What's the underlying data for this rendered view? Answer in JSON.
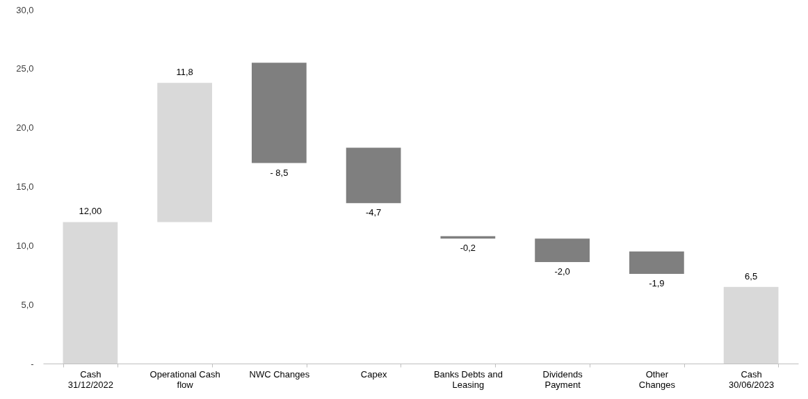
{
  "chart_data": {
    "type": "bar",
    "categories": [
      "Cash\n31/12/2022",
      "Operational Cash\nflow",
      "NWC Changes",
      "Capex",
      "Banks Debts and\nLeasing",
      "Dividends\nPayment",
      "Other\nChanges",
      "Cash\n30/06/2023"
    ],
    "values": [
      12.0,
      11.8,
      -8.5,
      -4.7,
      -0.2,
      -2.0,
      -1.9,
      6.5
    ],
    "base": [
      0,
      12.0,
      25.5,
      18.3,
      10.8,
      10.6,
      9.5,
      0
    ],
    "colors": [
      "#d9d9d9",
      "#d9d9d9",
      "#7f7f7f",
      "#7f7f7f",
      "#7f7f7f",
      "#7f7f7f",
      "#7f7f7f",
      "#d9d9d9"
    ],
    "value_labels": [
      "12,00",
      "11,8",
      "- 8,5",
      "-4,7",
      "-0,2",
      "-2,0",
      "-1,9",
      "6,5"
    ],
    "ylim": [
      0,
      30
    ],
    "yticks": [
      {
        "value": 0,
        "label": "-"
      },
      {
        "value": 5,
        "label": "5,0"
      },
      {
        "value": 10,
        "label": "10,0"
      },
      {
        "value": 15,
        "label": "15,0"
      },
      {
        "value": 20,
        "label": "20,0"
      },
      {
        "value": 25,
        "label": "25,0"
      },
      {
        "value": 30,
        "label": "30,0"
      }
    ],
    "grid": false
  }
}
